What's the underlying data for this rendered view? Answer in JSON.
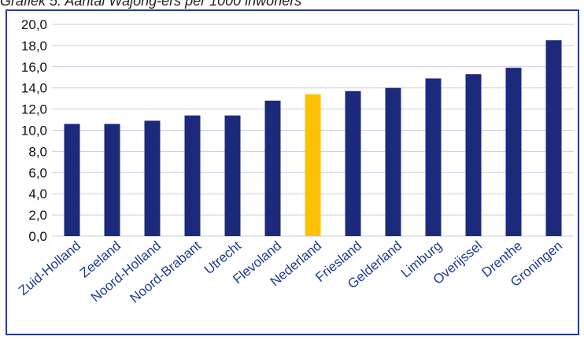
{
  "caption": "Grafiek 5: Aantal Wajong-ers per 1000 inwoners",
  "colors": {
    "bar": "#1c2a7c",
    "highlight": "#ffc000",
    "grid": "#c9cce0",
    "border": "#2a3b8f",
    "category_text": "#1f3a93"
  },
  "chart_data": {
    "type": "bar",
    "title": "",
    "xlabel": "",
    "ylabel": "",
    "ylim": [
      0,
      20
    ],
    "yticks": [
      "0,0",
      "2,0",
      "4,0",
      "6,0",
      "8,0",
      "10,0",
      "12,0",
      "14,0",
      "16,0",
      "18,0",
      "20,0"
    ],
    "grid": true,
    "categories": [
      "Zuid-Holland",
      "Zeeland",
      "Noord-Holland",
      "Noord-Brabant",
      "Utrecht",
      "Flevoland",
      "Nederland",
      "Friesland",
      "Gelderland",
      "Limburg",
      "Overijssel",
      "Drenthe",
      "Groningen"
    ],
    "values": [
      10.6,
      10.6,
      10.9,
      11.4,
      11.4,
      12.8,
      13.4,
      13.7,
      14.0,
      14.9,
      15.3,
      15.9,
      18.5
    ],
    "highlight_category": "Nederland"
  }
}
